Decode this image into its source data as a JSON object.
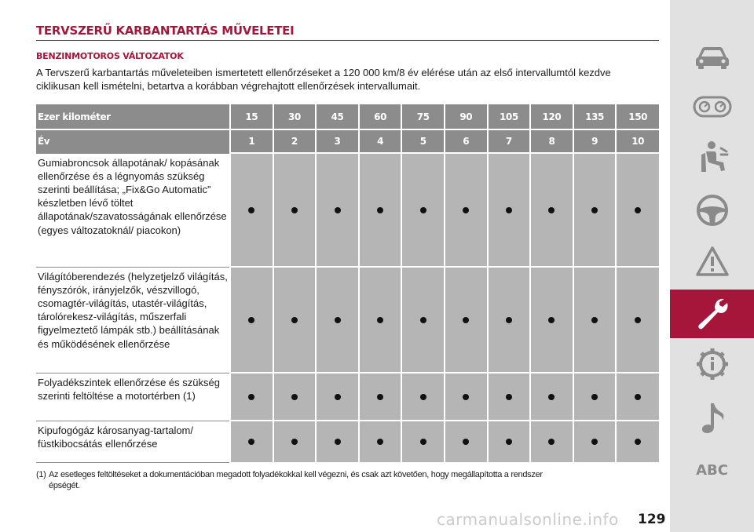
{
  "heading": {
    "title": "TERVSZERŰ KARBANTARTÁS MŰVELETEI",
    "subtitle": "BENZINMOTOROS VÁLTOZATOK",
    "intro": "A Tervszerű karbantartás műveleteiben ismertetett ellenőrzéseket a 120 000 km/8 év elérése után az első intervallumtól kezdve ciklikusan kell ismételni, betartva a korábban végrehajtott ellenőrzések intervallumait."
  },
  "table": {
    "km_label": "Ezer kilométer",
    "km_values": [
      "15",
      "30",
      "45",
      "60",
      "75",
      "90",
      "105",
      "120",
      "135",
      "150"
    ],
    "year_label": "Év",
    "year_values": [
      "1",
      "2",
      "3",
      "4",
      "5",
      "6",
      "7",
      "8",
      "9",
      "10"
    ],
    "rows": [
      {
        "label": "Gumiabroncsok állapotának/ kopásának ellenőrzése és a légnyomás szükség szerinti beállítása; „Fix&Go Automatic” készletben lévő töltet állapotának/szavatosságának ellenőrzése (egyes változatoknál/ piacokon)",
        "checks": [
          true,
          true,
          true,
          true,
          true,
          true,
          true,
          true,
          true,
          true
        ]
      },
      {
        "label": "Világítóberendezés (helyzetjelző világítás, fényszórók, irányjelzők, vészvillogó, csomagtér-világítás, utastér-világítás, tárolórekesz-világítás, műszerfali figyelmeztető lámpák stb.) beállításának és működésének ellenőrzése",
        "checks": [
          true,
          true,
          true,
          true,
          true,
          true,
          true,
          true,
          true,
          true
        ]
      },
      {
        "label": "Folyadékszintek ellenőrzése és szükség szerinti feltöltése a motortérben (1)",
        "checks": [
          true,
          true,
          true,
          true,
          true,
          true,
          true,
          true,
          true,
          true
        ]
      },
      {
        "label": "Kipufogógáz károsanyag-tartalom/ füstkibocsátás ellenőrzése",
        "checks": [
          true,
          true,
          true,
          true,
          true,
          true,
          true,
          true,
          true,
          true
        ]
      }
    ]
  },
  "footnote": {
    "marker": "(1)",
    "text": "Az esetleges feltöltéseket a dokumentációban megadott folyadékokkal kell végezni, és csak azt követően, hogy megállapította a rendszer",
    "text_cont": "épségét."
  },
  "page_number": "129",
  "watermark": "carmanualsonline.info",
  "sidebar": {
    "items": [
      {
        "icon": "car-icon",
        "active": false
      },
      {
        "icon": "dashboard-gauges-icon",
        "active": false
      },
      {
        "icon": "seat-safety-icon",
        "active": false
      },
      {
        "icon": "steering-wheel-icon",
        "active": false
      },
      {
        "icon": "warning-triangle-icon",
        "active": false
      },
      {
        "icon": "wrench-icon",
        "active": true
      },
      {
        "icon": "info-gear-icon",
        "active": false
      },
      {
        "icon": "music-note-icon",
        "active": false
      }
    ],
    "abc_label": "ABC"
  },
  "colors": {
    "accent": "#a5163a",
    "header_gray": "#8c8c8c",
    "cell_gray": "#b5b5b5",
    "sidebar_bg": "#e1e1e1",
    "icon_gray": "#8a8a8a"
  }
}
